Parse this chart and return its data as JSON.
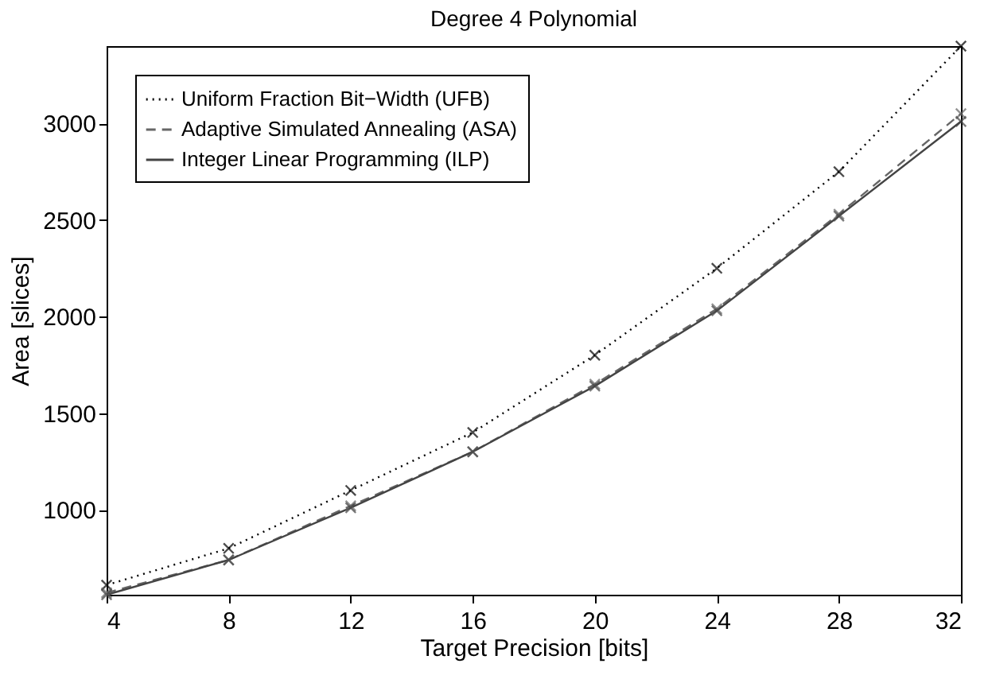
{
  "chart_data": {
    "type": "line",
    "title": "Degree 4 Polynomial",
    "xlabel": "Target Precision [bits]",
    "ylabel": "Area [slices]",
    "x": [
      4,
      8,
      12,
      16,
      20,
      24,
      28,
      32
    ],
    "series": [
      {
        "name": "Uniform Fraction Bit−Width (UFB)",
        "color": "#000000",
        "line_style": "dotted",
        "marker": "cross",
        "values": [
          610,
          800,
          1100,
          1400,
          1800,
          2250,
          2750,
          3400
        ]
      },
      {
        "name": "Adaptive Simulated Annealing (ASA)",
        "color": "#666666",
        "line_style": "dashed",
        "marker": "cross",
        "values": [
          570,
          740,
          1020,
          1300,
          1650,
          2040,
          2530,
          3050
        ]
      },
      {
        "name": "Integer Linear Programming (ILP)",
        "color": "#444444",
        "line_style": "solid",
        "marker": "cross",
        "values": [
          560,
          740,
          1010,
          1300,
          1640,
          2030,
          2520,
          3010
        ]
      }
    ],
    "xlim": [
      4,
      32
    ],
    "xticks": [
      4,
      8,
      12,
      16,
      20,
      24,
      28,
      32
    ],
    "ylim": [
      560,
      3400
    ],
    "yticks": [
      1000,
      1500,
      2000,
      2500,
      3000
    ],
    "grid": false,
    "legend": "top left"
  }
}
